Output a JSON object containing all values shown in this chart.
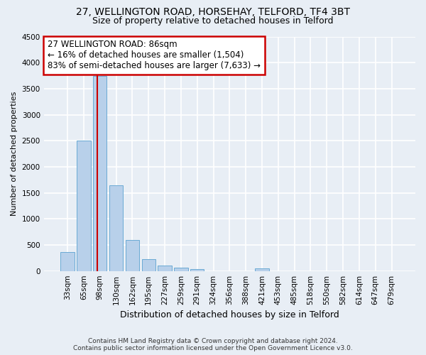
{
  "title1": "27, WELLINGTON ROAD, HORSEHAY, TELFORD, TF4 3BT",
  "title2": "Size of property relative to detached houses in Telford",
  "xlabel": "Distribution of detached houses by size in Telford",
  "ylabel": "Number of detached properties",
  "categories": [
    "33sqm",
    "65sqm",
    "98sqm",
    "130sqm",
    "162sqm",
    "195sqm",
    "227sqm",
    "259sqm",
    "291sqm",
    "324sqm",
    "356sqm",
    "388sqm",
    "421sqm",
    "453sqm",
    "485sqm",
    "518sqm",
    "550sqm",
    "582sqm",
    "614sqm",
    "647sqm",
    "679sqm"
  ],
  "values": [
    370,
    2500,
    3750,
    1640,
    590,
    225,
    105,
    65,
    40,
    0,
    0,
    0,
    55,
    0,
    0,
    0,
    0,
    0,
    0,
    0,
    0
  ],
  "bar_color": "#b8d0ea",
  "bar_edge_color": "#6aaad4",
  "vline_x": 1.82,
  "vline_color": "#cc0000",
  "annotation_line1": "27 WELLINGTON ROAD: 86sqm",
  "annotation_line2": "← 16% of detached houses are smaller (1,504)",
  "annotation_line3": "83% of semi-detached houses are larger (7,633) →",
  "annotation_box_color": "white",
  "annotation_box_edgecolor": "#cc0000",
  "ylim": [
    0,
    4500
  ],
  "yticks": [
    0,
    500,
    1000,
    1500,
    2000,
    2500,
    3000,
    3500,
    4000,
    4500
  ],
  "footer": "Contains HM Land Registry data © Crown copyright and database right 2024.\nContains public sector information licensed under the Open Government Licence v3.0.",
  "bg_color": "#e8eef5",
  "plot_bg_color": "#e8eef5",
  "grid_color": "white",
  "title1_fontsize": 10,
  "title2_fontsize": 9,
  "xlabel_fontsize": 9,
  "ylabel_fontsize": 8,
  "tick_fontsize": 7.5,
  "annotation_fontsize": 8.5
}
